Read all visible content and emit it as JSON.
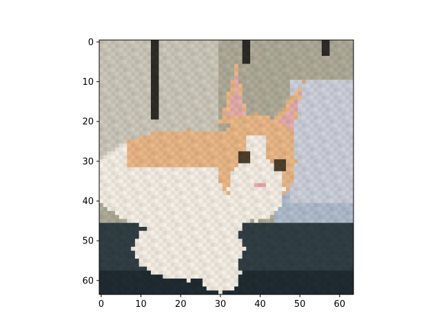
{
  "figure": {
    "background": "#ffffff",
    "image_description_icon": "pixelated-cat-photo"
  },
  "axes": {
    "x_ticks": [
      "0",
      "10",
      "20",
      "30",
      "40",
      "50",
      "60"
    ],
    "y_ticks": [
      "0",
      "10",
      "20",
      "30",
      "40",
      "50",
      "60"
    ],
    "x_tick_values": [
      0,
      10,
      20,
      30,
      40,
      50,
      60
    ],
    "y_tick_values": [
      0,
      10,
      20,
      30,
      40,
      50,
      60
    ],
    "extent": [
      -0.5,
      63.5
    ],
    "frame_color": "#000000"
  },
  "image": {
    "pixels": [
      64,
      64
    ],
    "colors": {
      "wall": "#a9a593",
      "wall_light": "#c5c1b4",
      "bars": "#2b2a27",
      "cushion": "#c6c9d4",
      "cushion_blue": "#a9b6c6",
      "floor": "#2f3c42",
      "floor_dark": "#1f2a30",
      "fur_orange": "#e2b182",
      "fur_orange_dark": "#c98f5c",
      "fur_white": "#ece6dc",
      "ear_pink": "#dca7a6",
      "eye": "#4a3d2a",
      "nose": "#e3a1a1"
    }
  }
}
